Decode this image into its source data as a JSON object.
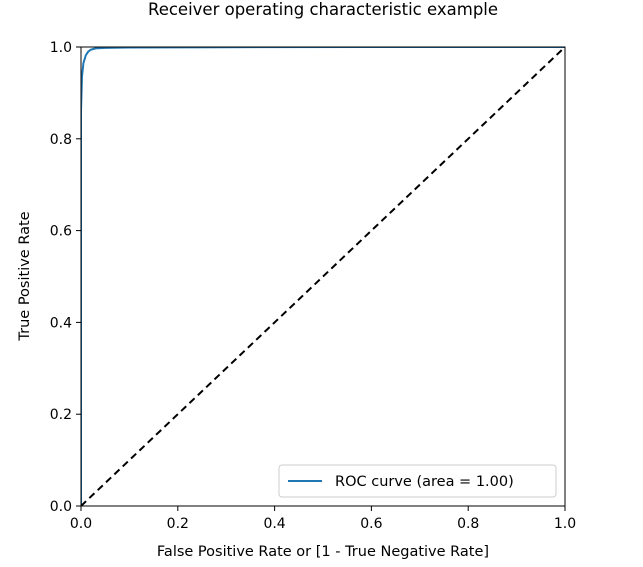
{
  "chart_data": {
    "type": "line",
    "title": "Receiver operating characteristic example",
    "xlabel": "False Positive Rate or [1 - True Negative Rate]",
    "ylabel": "True Positive Rate",
    "xlim": [
      0.0,
      1.0
    ],
    "ylim": [
      0.0,
      1.0
    ],
    "grid": false,
    "legend_placement": "lower-right",
    "x_ticks": [
      0.0,
      0.2,
      0.4,
      0.6,
      0.8,
      1.0
    ],
    "y_ticks": [
      0.0,
      0.2,
      0.4,
      0.6,
      0.8,
      1.0
    ],
    "x_tick_labels": [
      "0.0",
      "0.2",
      "0.4",
      "0.6",
      "0.8",
      "1.0"
    ],
    "y_tick_labels": [
      "0.0",
      "0.2",
      "0.4",
      "0.6",
      "0.8",
      "1.0"
    ],
    "series": [
      {
        "name": "ROC curve (area = 1.00)",
        "color": "#1f77b4",
        "style": "solid",
        "x": [
          0.0,
          0.0,
          0.002,
          0.005,
          0.01,
          0.015,
          0.02,
          0.03,
          0.05,
          0.1,
          0.3,
          0.6,
          1.0
        ],
        "y": [
          0.0,
          0.86,
          0.935,
          0.965,
          0.982,
          0.99,
          0.994,
          0.997,
          0.998,
          0.999,
          0.9995,
          1.0,
          1.0
        ]
      },
      {
        "name": "",
        "color": "#000000",
        "style": "dashed",
        "x": [
          0.0,
          1.0
        ],
        "y": [
          0.0,
          1.0
        ]
      }
    ]
  }
}
